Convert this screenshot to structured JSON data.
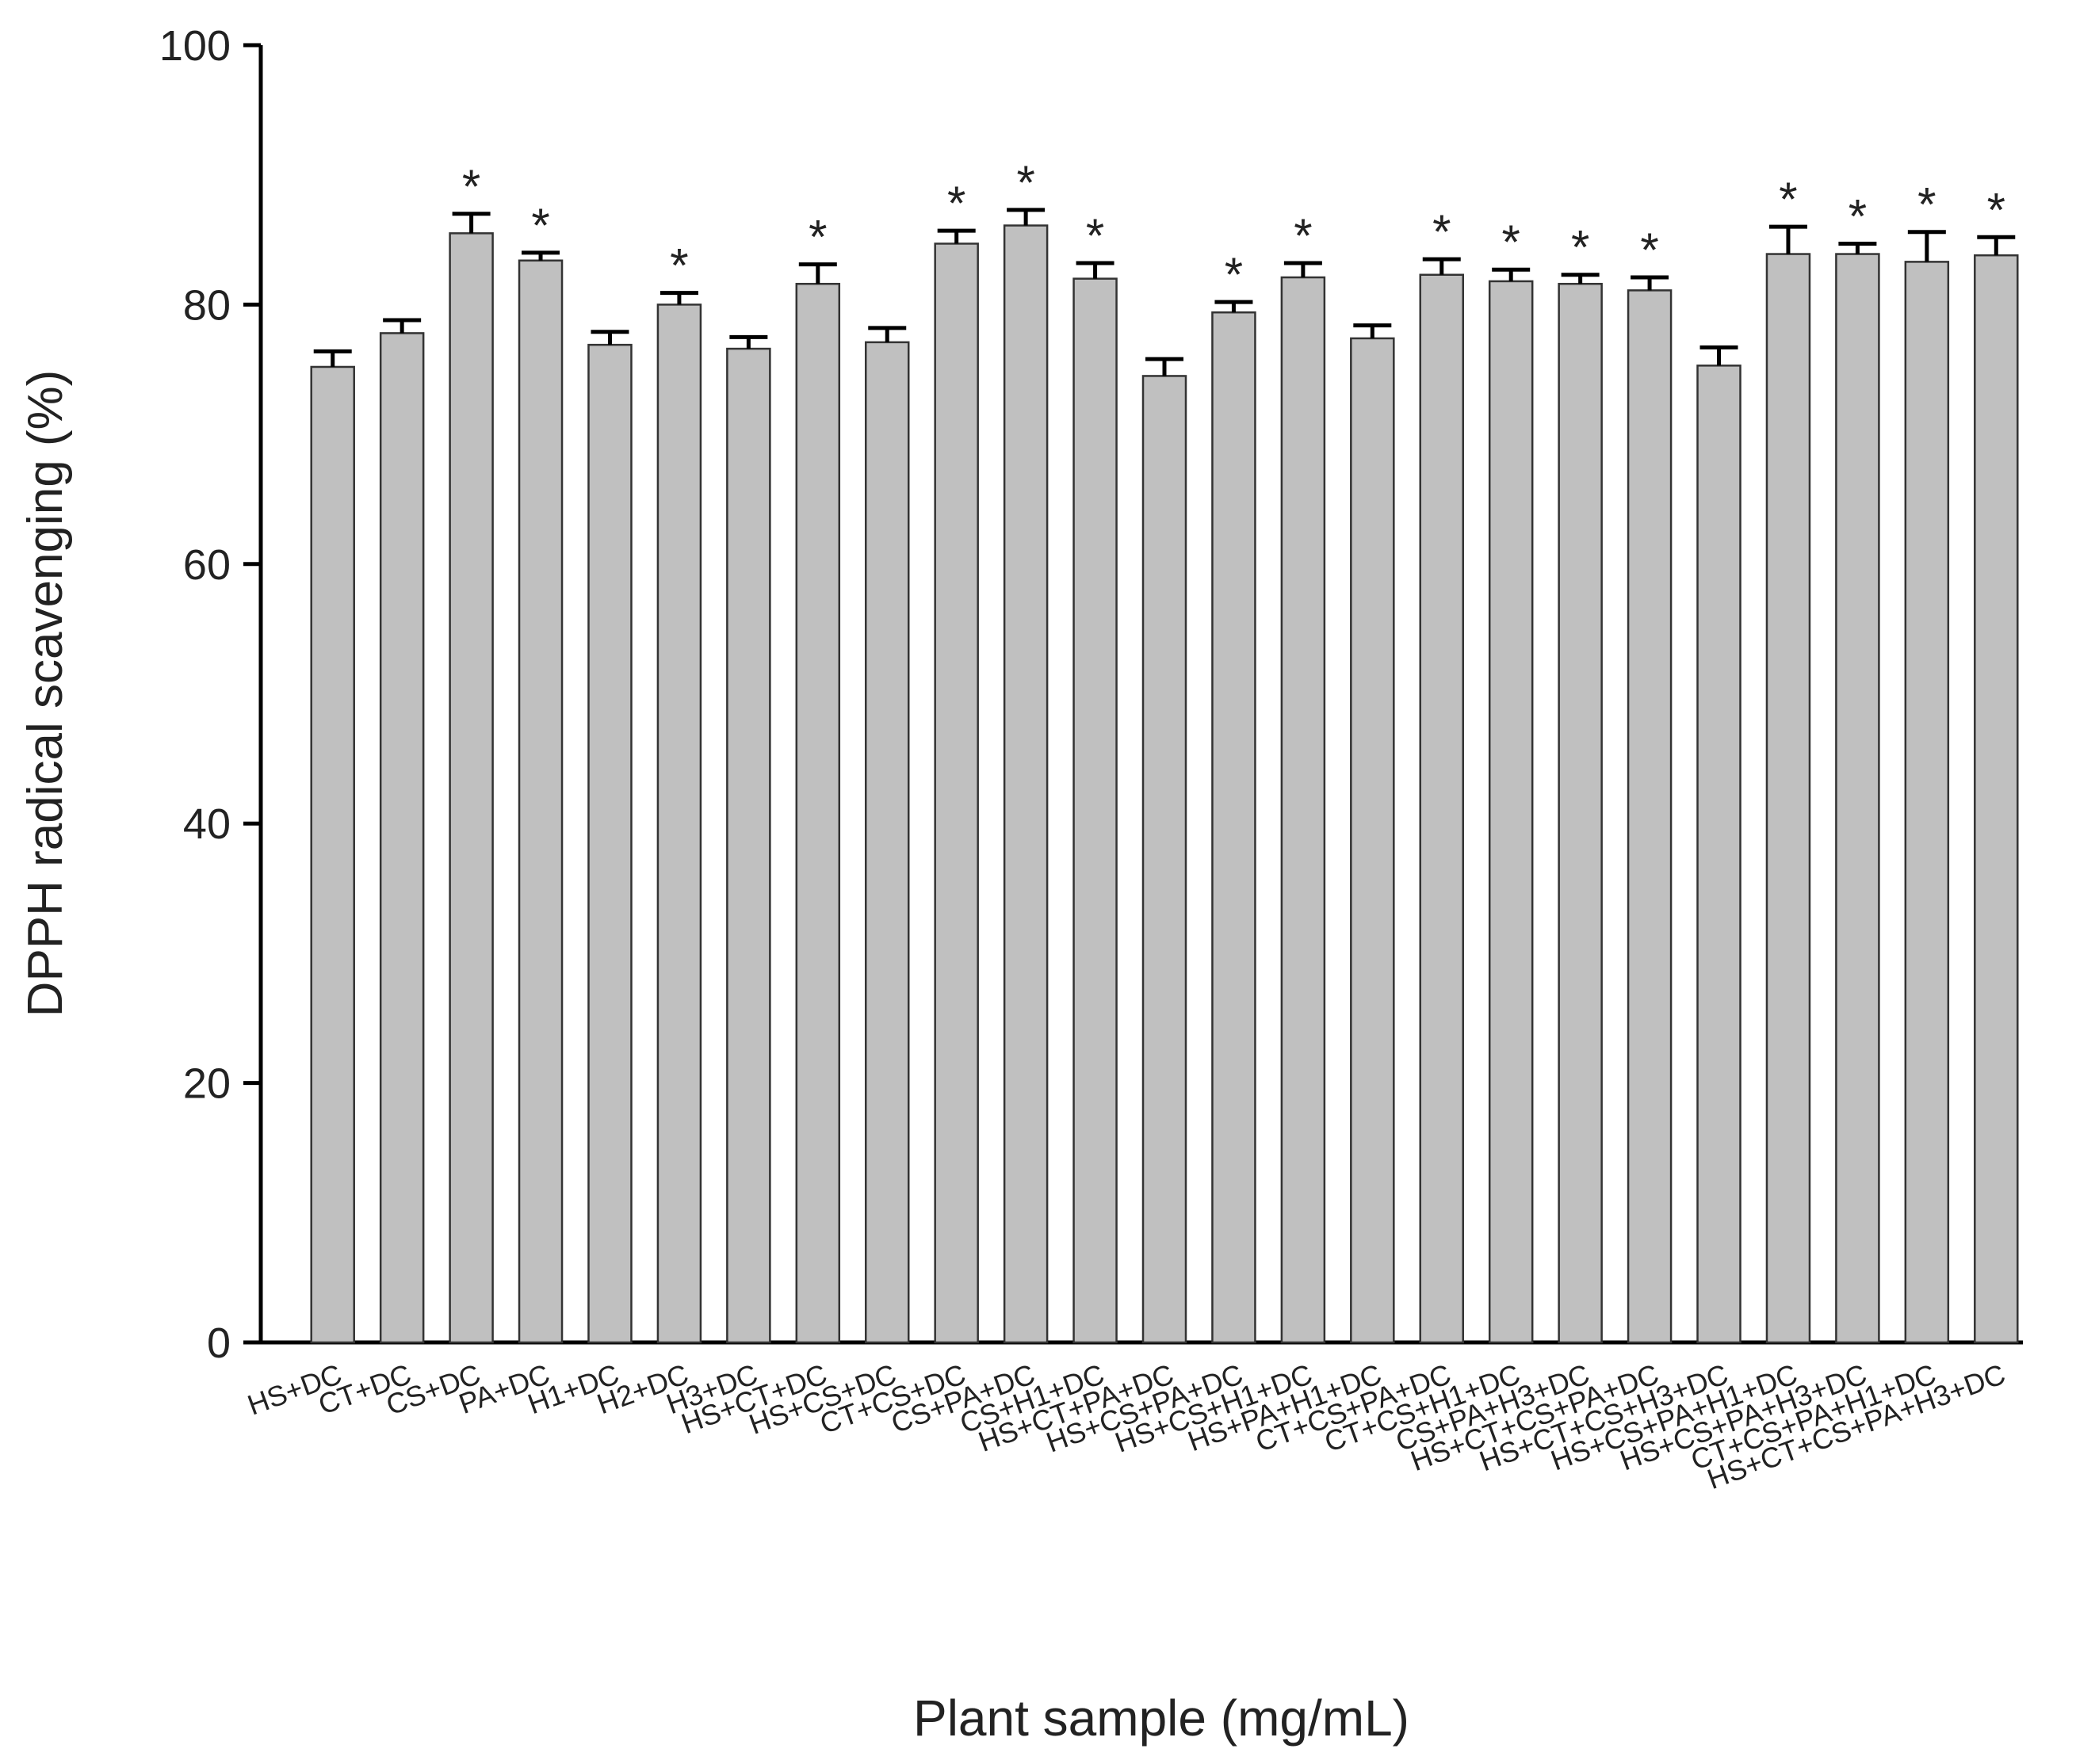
{
  "chart_data": {
    "type": "bar",
    "y_label": "DPPH radical scavenging (%)",
    "x_label": "Plant sample (mg/mL)",
    "categories": [
      "HS+DC",
      "CT+DC",
      "CS+DC",
      "PA+DC",
      "H1+DC",
      "H2+DC",
      "H3+DC",
      "HS+CT+DC",
      "HS+CS+DC",
      "CT+CS+DC",
      "CS+PA+DC",
      "CS+H1+DC",
      "HS+CT+PA+DC",
      "HS+CS+PA+DC",
      "HS+CS+H1+DC",
      "HS+PA+H1+DC",
      "CT+CS+PA+DC",
      "CT+CS+H1+DC",
      "CS+PA+H3+DC",
      "HS+CT+CS+PA+DC",
      "HS+CT+CS+H3+DC",
      "HS+CS+PA+H1+DC",
      "HS+CS+PA+H3+DC",
      "CT+CS+PA+H1+DC",
      "HS+CT+CS+PA+H3+DC"
    ],
    "values": [
      75.2,
      77.8,
      85.5,
      83.4,
      76.9,
      80.0,
      76.6,
      81.6,
      77.1,
      84.7,
      86.1,
      82.0,
      74.5,
      79.4,
      82.1,
      77.4,
      82.3,
      81.8,
      81.6,
      81.1,
      75.3,
      83.9,
      83.9,
      83.3,
      83.8
    ],
    "errors": [
      1.2,
      1.0,
      1.5,
      0.6,
      1.0,
      0.9,
      0.9,
      1.5,
      1.1,
      1.0,
      1.2,
      1.2,
      1.3,
      0.8,
      1.1,
      1.0,
      1.2,
      0.9,
      0.7,
      1.0,
      1.4,
      2.1,
      0.8,
      2.3,
      1.4
    ],
    "annotations": [
      null,
      null,
      "*",
      "*",
      null,
      "*",
      null,
      "*",
      null,
      "*",
      "*",
      "*",
      null,
      "*",
      "*",
      null,
      "*",
      "*",
      "*",
      "*",
      null,
      "*",
      "*",
      "*",
      "*"
    ],
    "color": "#c0c0c0",
    "ylim": [
      0,
      100
    ],
    "yticks": [
      0,
      20,
      40,
      60,
      80,
      100
    ]
  }
}
